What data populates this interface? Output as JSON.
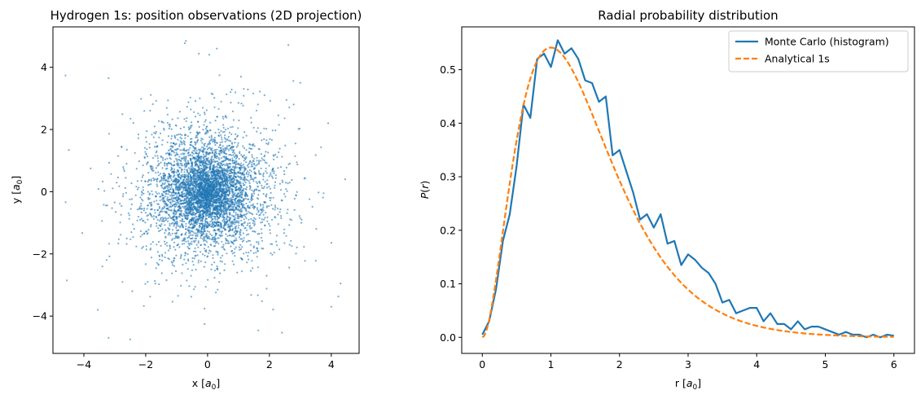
{
  "chart_data": [
    {
      "type": "scatter",
      "title": "Hydrogen 1s: position observations (2D projection)",
      "xlabel": "x [a0]",
      "ylabel": "y [a0]",
      "xlim": [
        -5.0,
        4.9
      ],
      "ylim": [
        -5.2,
        5.3
      ],
      "x_ticks": [
        -4,
        -2,
        0,
        2,
        4
      ],
      "y_ticks": [
        -4,
        -2,
        0,
        2,
        4
      ],
      "grid": false,
      "point_color": "#1f77b4",
      "sample_size": 5000,
      "distribution": "hydrogen 1s, radial density proportional to r^2 e^(-2r), projected onto x-y plane",
      "notable_points": [
        {
          "x": -0.7,
          "y": 4.85
        },
        {
          "x": 0.3,
          "y": 4.6
        },
        {
          "x": -3.2,
          "y": 3.65
        },
        {
          "x": 3.0,
          "y": 3.5
        },
        {
          "x": 4.45,
          "y": 0.4
        },
        {
          "x": -4.55,
          "y": -2.85
        },
        {
          "x": -3.2,
          "y": -4.7
        },
        {
          "x": -2.5,
          "y": -4.75
        },
        {
          "x": 4.0,
          "y": -3.7
        },
        {
          "x": 4.3,
          "y": -2.95
        },
        {
          "x": -3.55,
          "y": -3.8
        },
        {
          "x": 3.9,
          "y": 2.2
        }
      ]
    },
    {
      "type": "line",
      "title": "Radial probability distribution",
      "xlabel": "r [a0]",
      "ylabel": "P(r)",
      "xlim": [
        -0.3,
        6.3
      ],
      "ylim": [
        -0.03,
        0.58
      ],
      "x_ticks": [
        0,
        1,
        2,
        3,
        4,
        5,
        6
      ],
      "y_ticks": [
        0.0,
        0.1,
        0.2,
        0.3,
        0.4,
        0.5
      ],
      "grid": false,
      "legend_position": "top-right",
      "series": [
        {
          "name": "Monte Carlo (histogram)",
          "color": "#1f77b4",
          "style": "solid",
          "x": [
            0.0,
            0.1,
            0.2,
            0.3,
            0.4,
            0.5,
            0.6,
            0.7,
            0.8,
            0.9,
            1.0,
            1.1,
            1.2,
            1.3,
            1.4,
            1.5,
            1.6,
            1.7,
            1.8,
            1.9,
            2.0,
            2.1,
            2.2,
            2.3,
            2.4,
            2.5,
            2.6,
            2.7,
            2.8,
            2.9,
            3.0,
            3.1,
            3.2,
            3.3,
            3.4,
            3.5,
            3.6,
            3.7,
            3.8,
            3.9,
            4.0,
            4.1,
            4.2,
            4.3,
            4.4,
            4.5,
            4.6,
            4.7,
            4.8,
            4.9,
            5.0,
            5.1,
            5.2,
            5.3,
            5.4,
            5.5,
            5.6,
            5.7,
            5.8,
            5.9,
            6.0
          ],
          "y": [
            0.005,
            0.03,
            0.09,
            0.18,
            0.23,
            0.32,
            0.435,
            0.41,
            0.52,
            0.53,
            0.505,
            0.555,
            0.53,
            0.54,
            0.52,
            0.48,
            0.475,
            0.44,
            0.45,
            0.34,
            0.35,
            0.31,
            0.27,
            0.22,
            0.23,
            0.205,
            0.23,
            0.175,
            0.18,
            0.135,
            0.155,
            0.145,
            0.13,
            0.12,
            0.1,
            0.065,
            0.07,
            0.045,
            0.05,
            0.055,
            0.055,
            0.03,
            0.045,
            0.025,
            0.025,
            0.015,
            0.03,
            0.015,
            0.02,
            0.02,
            0.015,
            0.01,
            0.005,
            0.01,
            0.005,
            0.005,
            0.0,
            0.005,
            0.0,
            0.005,
            0.003
          ],
          "note": "histogram bin centres spaced 0.1 a0"
        },
        {
          "name": "Analytical 1s",
          "color": "#ff7f0e",
          "style": "dashed",
          "formula": "P(r) = 4 r^2 e^(-2r)",
          "x_range": [
            0,
            6
          ]
        }
      ]
    }
  ]
}
